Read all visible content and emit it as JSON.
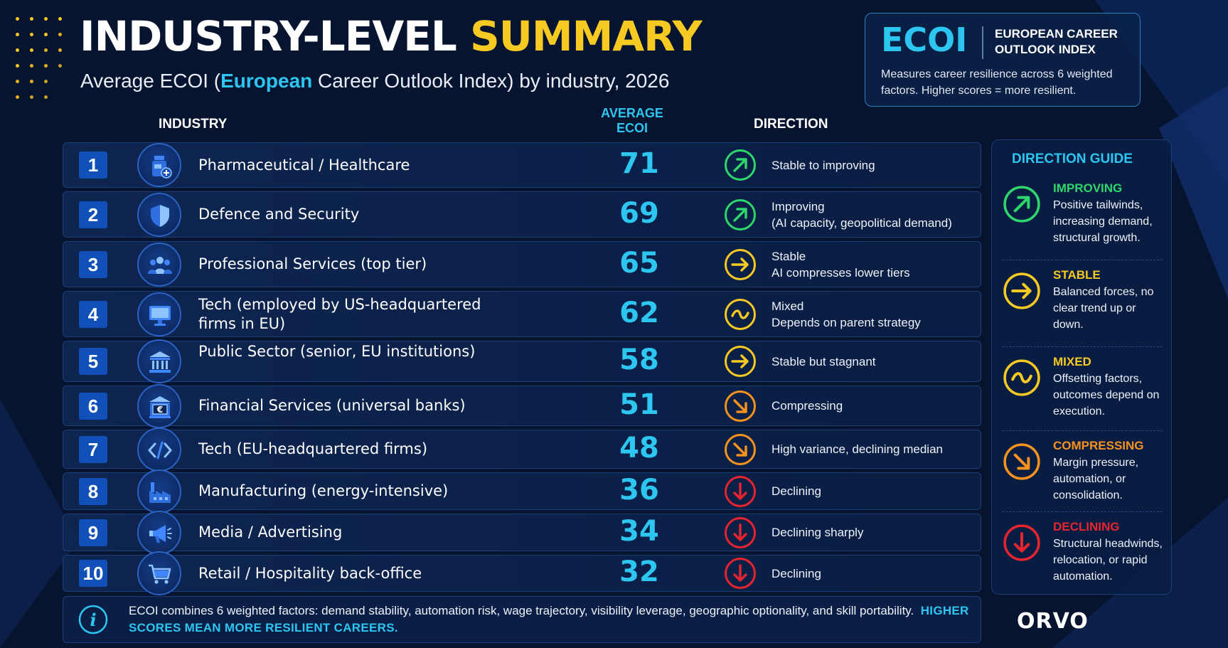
{
  "header": {
    "title_part1": "INDUSTRY-LEVEL",
    "title_part2": "SUMMARY",
    "subtitle_pre": "Average ECOI (",
    "subtitle_hl": "European",
    "subtitle_post": " Career Outlook Index) by industry, 2026"
  },
  "ecoi_box": {
    "abbr": "ECOI",
    "name": "EUROPEAN CAREER OUTLOOK INDEX",
    "description": "Measures career resilience across 6 weighted factors. Higher scores = more resilient."
  },
  "columns": {
    "industry": "INDUSTRY",
    "average_line1": "AVERAGE",
    "average_line2": "ECOI",
    "direction": "DIRECTION"
  },
  "chart_data": {
    "type": "table",
    "columns": [
      "INDUSTRY",
      "AVERAGE ECOI",
      "DIRECTION"
    ],
    "rows": [
      {
        "rank": "1",
        "industry": "Pharmaceutical / Healthcare",
        "ecoi": 71,
        "direction": "improving",
        "text1": "Stable to improving",
        "text2": "",
        "icon": "medicine-bottle-icon"
      },
      {
        "rank": "2",
        "industry": "Defence and Security",
        "ecoi": 69,
        "direction": "improving",
        "text1": "Improving",
        "text2": "(AI capacity, geopolitical demand)",
        "icon": "shield-icon"
      },
      {
        "rank": "3",
        "industry": "Professional Services (top tier)",
        "ecoi": 65,
        "direction": "stable",
        "text1": "Stable",
        "text2": "AI compresses lower tiers",
        "icon": "people-group-icon"
      },
      {
        "rank": "4",
        "industry": "Tech (employed by US-headquartered firms in EU)",
        "ecoi": 62,
        "direction": "mixed",
        "text1": "Mixed",
        "text2": "Depends on parent strategy",
        "icon": "monitor-icon"
      },
      {
        "rank": "5",
        "industry": "Public Sector (senior, EU institutions)",
        "ecoi": 58,
        "direction": "stable",
        "text1": "Stable but stagnant",
        "text2": "",
        "icon": "institution-building-icon"
      },
      {
        "rank": "6",
        "industry": "Financial Services (universal banks)",
        "ecoi": 51,
        "direction": "compressing",
        "text1": "Compressing",
        "text2": "",
        "icon": "euro-bank-icon"
      },
      {
        "rank": "7",
        "industry": "Tech (EU-headquartered firms)",
        "ecoi": 48,
        "direction": "compressing",
        "text1": "High variance, declining median",
        "text2": "",
        "icon": "code-icon"
      },
      {
        "rank": "8",
        "industry": "Manufacturing (energy-intensive)",
        "ecoi": 36,
        "direction": "declining",
        "text1": "Declining",
        "text2": "",
        "icon": "factory-icon"
      },
      {
        "rank": "9",
        "industry": "Media / Advertising",
        "ecoi": 34,
        "direction": "declining",
        "text1": "Declining sharply",
        "text2": "",
        "icon": "megaphone-icon"
      },
      {
        "rank": "10",
        "industry": "Retail / Hospitality back-office",
        "ecoi": 32,
        "direction": "declining",
        "text1": "Declining",
        "text2": "",
        "icon": "shopping-cart-icon"
      }
    ]
  },
  "colors": {
    "improving": "#2ed66b",
    "stable": "#f6c923",
    "mixed": "#f6c923",
    "compressing": "#f6921e",
    "declining": "#e8252f",
    "accent": "#2cc6f0"
  },
  "guide": {
    "title": "DIRECTION GUIDE",
    "items": [
      {
        "key": "improving",
        "label": "IMPROVING",
        "desc": "Positive tailwinds, increasing demand, structural growth."
      },
      {
        "key": "stable",
        "label": "STABLE",
        "desc": "Balanced forces, no clear trend up or down."
      },
      {
        "key": "mixed",
        "label": "MIXED",
        "desc": "Offsetting factors, outcomes depend on execution."
      },
      {
        "key": "compressing",
        "label": "COMPRESSING",
        "desc": "Margin pressure, automation, or consolidation."
      },
      {
        "key": "declining",
        "label": "DECLINING",
        "desc": "Structural headwinds, relocation, or rapid automation."
      }
    ]
  },
  "footnote": {
    "text": "ECOI combines 6 weighted factors: demand stability, automation risk, wage trajectory, visibility leverage, geographic optionality, and skill portability.",
    "highlight": "HIGHER SCORES MEAN MORE RESILIENT CAREERS."
  },
  "logo": "ORVO"
}
